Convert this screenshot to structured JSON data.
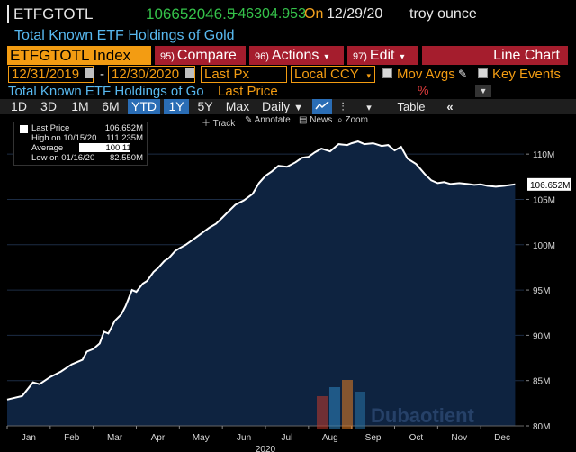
{
  "ticker": {
    "symbol": "ETFGTOTL",
    "price": "106652046.5",
    "change": "+46304.953",
    "on_label": "On",
    "date": "12/29/20",
    "unit": "troy ounce"
  },
  "description": "Total Known ETF Holdings of Gold",
  "security_field": "ETFGTOTL Index",
  "menus": [
    {
      "num": "95)",
      "label": "Compare",
      "has_dropdown": false
    },
    {
      "num": "96)",
      "label": "Actions",
      "has_dropdown": true
    },
    {
      "num": "97)",
      "label": "Edit",
      "has_dropdown": true
    },
    {
      "label": "Line Chart"
    }
  ],
  "range": {
    "start": "12/31/2019",
    "end": "12/30/2020",
    "separator": "-",
    "field": "Last Px",
    "currency": "Local CCY",
    "mov_avgs": "Mov Avgs",
    "key_events": "Key Events"
  },
  "series_row": {
    "security": "Total Known ETF Holdings of Go",
    "field": "Last Price",
    "pct_symbol": "%"
  },
  "periods": [
    "1D",
    "3D",
    "1M",
    "6M",
    "YTD",
    "1Y",
    "5Y",
    "Max"
  ],
  "selected_periods": [
    "YTD",
    "1Y"
  ],
  "frequency": "Daily",
  "table_label": "Table",
  "mini_toolbar": [
    "Track",
    "Annotate",
    "News",
    "Zoom"
  ],
  "legend": [
    {
      "label": "Last Price",
      "value": "106.652M"
    },
    {
      "label": "High on 10/15/20",
      "value": "111.235M"
    },
    {
      "label": "Average",
      "value": "100.112M"
    },
    {
      "label": "Low on 01/16/20",
      "value": "82.550M"
    }
  ],
  "colors": {
    "accent_orange": "#f39c12",
    "menu_red": "#a51d2d",
    "price_green": "#35c24a",
    "desc_blue": "#58b9f0",
    "area_fill": "#0e2340"
  },
  "chart_data": {
    "type": "area",
    "x_tick_labels": [
      "Jan",
      "Feb",
      "Mar",
      "Apr",
      "May",
      "Jun",
      "Jul",
      "Aug",
      "Sep",
      "Oct",
      "Nov",
      "Dec"
    ],
    "x_year_label": "2020",
    "y_tick_labels": [
      "80M",
      "85M",
      "90M",
      "95M",
      "100M",
      "105M",
      "110M"
    ],
    "ylim": [
      80,
      112.5
    ],
    "y_unit": "M",
    "last_value_label": "106.652M",
    "series": [
      {
        "x": [
          0.0,
          0.35,
          0.6,
          0.75,
          1.0,
          1.25,
          1.5,
          1.75,
          1.85,
          2.0,
          2.15,
          2.25,
          2.35,
          2.5,
          2.65,
          2.75,
          2.9,
          3.0,
          3.15,
          3.25,
          3.4,
          3.5,
          3.65,
          3.75,
          3.9,
          4.0,
          4.15,
          4.3,
          4.5,
          4.7,
          4.85,
          5.0,
          5.15,
          5.3,
          5.5,
          5.7,
          5.85,
          6.0,
          6.15,
          6.3,
          6.5,
          6.7,
          6.85,
          7.0,
          7.15,
          7.3,
          7.5,
          7.7,
          7.9,
          8.0,
          8.15,
          8.3,
          8.5,
          8.7,
          8.85,
          9.0,
          9.15,
          9.3,
          9.5,
          9.7,
          9.85,
          10.0,
          10.15,
          10.3,
          10.5,
          10.7,
          10.85,
          11.0,
          11.15,
          11.35,
          11.55,
          11.8
        ],
        "values": [
          82.9,
          83.3,
          84.8,
          84.6,
          85.4,
          86.0,
          86.8,
          87.3,
          88.2,
          88.5,
          89.1,
          90.4,
          90.2,
          91.6,
          92.3,
          93.2,
          95.0,
          94.8,
          95.7,
          96.0,
          97.0,
          97.4,
          98.2,
          98.5,
          99.3,
          99.6,
          100.0,
          100.5,
          101.2,
          101.9,
          102.3,
          103.0,
          103.7,
          104.4,
          104.9,
          105.6,
          106.8,
          107.6,
          108.1,
          108.7,
          108.6,
          109.1,
          109.6,
          109.7,
          110.2,
          110.6,
          110.3,
          111.1,
          111.0,
          111.2,
          111.4,
          111.1,
          111.2,
          110.9,
          111.0,
          110.4,
          110.8,
          109.5,
          108.9,
          107.8,
          107.1,
          106.8,
          106.9,
          106.7,
          106.8,
          106.7,
          106.6,
          106.652,
          106.5,
          106.4,
          106.5,
          106.652
        ]
      }
    ]
  },
  "watermark": "Dubaotient"
}
